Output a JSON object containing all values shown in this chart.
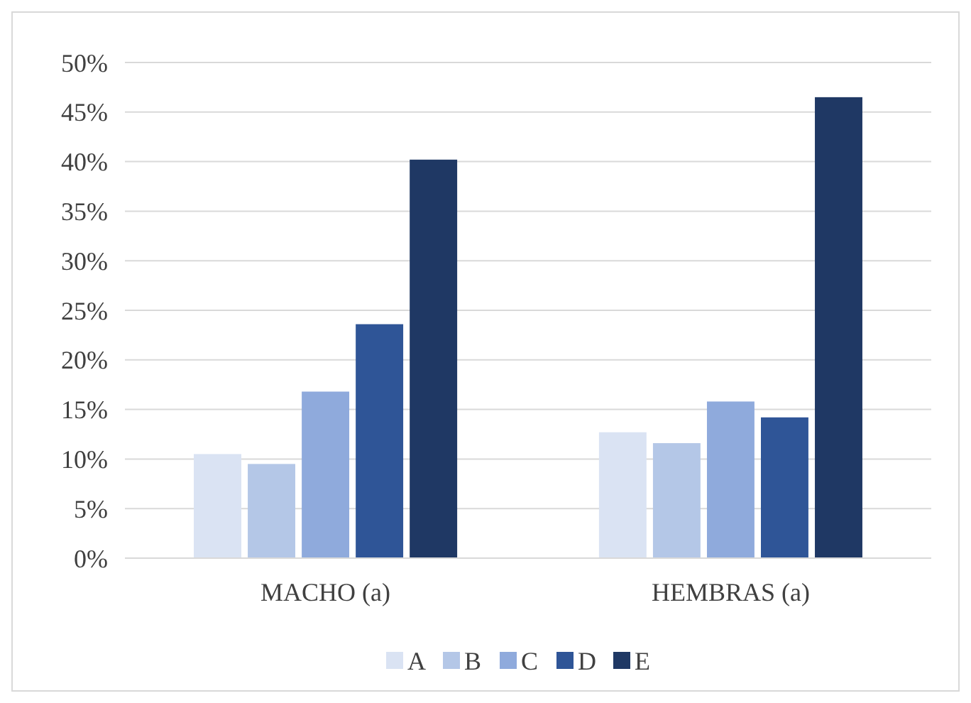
{
  "chart_data": {
    "type": "bar",
    "categories": [
      "MACHO (a)",
      "HEMBRAS (a)"
    ],
    "series": [
      {
        "name": "A",
        "color": "#dae3f3",
        "values": [
          10.5,
          12.7
        ]
      },
      {
        "name": "B",
        "color": "#b4c7e7",
        "values": [
          9.5,
          11.6
        ]
      },
      {
        "name": "C",
        "color": "#8faadc",
        "values": [
          16.8,
          15.8
        ]
      },
      {
        "name": "D",
        "color": "#2f5597",
        "values": [
          23.6,
          14.2
        ]
      },
      {
        "name": "E",
        "color": "#1f3864",
        "values": [
          40.2,
          46.5
        ]
      }
    ],
    "ylim": [
      0,
      50
    ],
    "yticks": [
      {
        "value": 0,
        "label": "0%"
      },
      {
        "value": 5,
        "label": "5%"
      },
      {
        "value": 10,
        "label": "10%"
      },
      {
        "value": 15,
        "label": "15%"
      },
      {
        "value": 20,
        "label": "20%"
      },
      {
        "value": 25,
        "label": "25%"
      },
      {
        "value": 30,
        "label": "30%"
      },
      {
        "value": 35,
        "label": "35%"
      },
      {
        "value": 40,
        "label": "40%"
      },
      {
        "value": 45,
        "label": "45%"
      },
      {
        "value": 50,
        "label": "50%"
      }
    ],
    "grid": "y",
    "legend": "bottom"
  }
}
